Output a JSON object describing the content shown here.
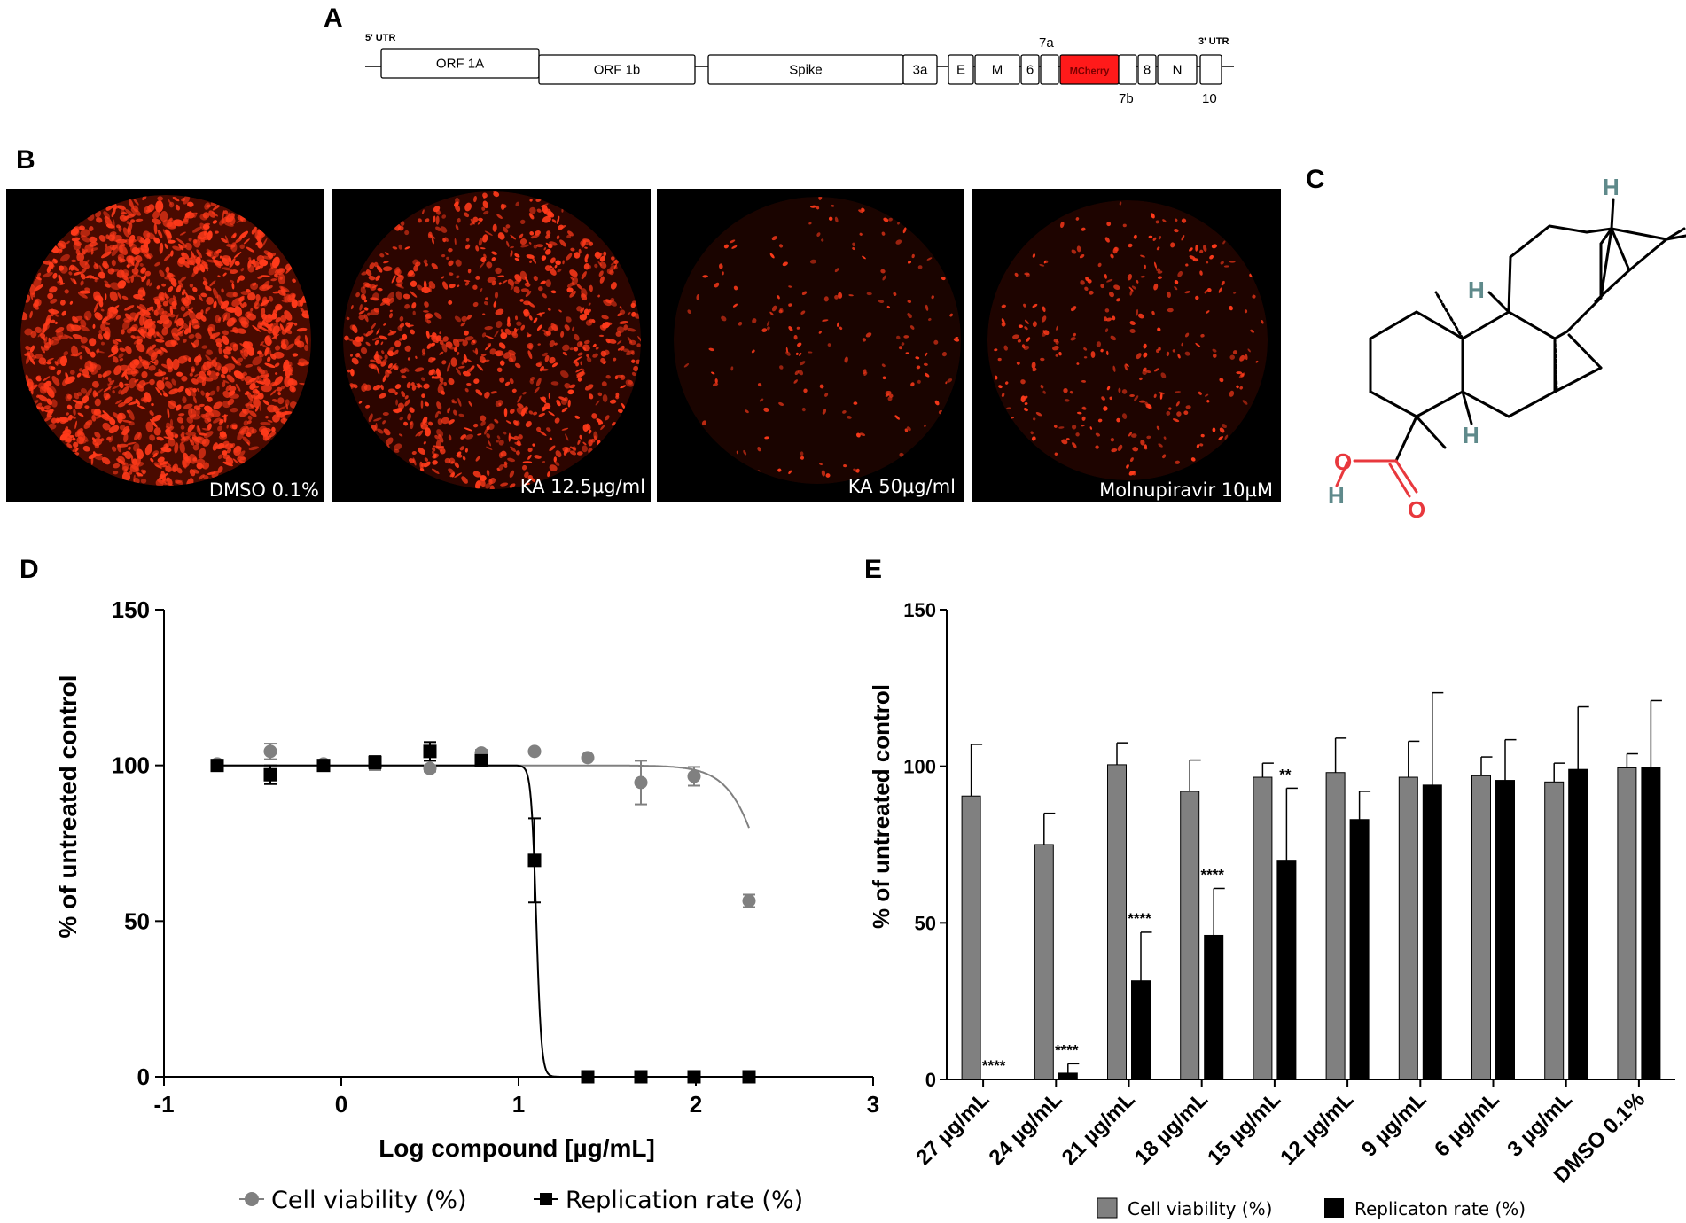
{
  "panels": {
    "a": "A",
    "b": "B",
    "c": "C",
    "d": "D",
    "e": "E"
  },
  "genome": {
    "utr5": "5' UTR",
    "utr3": "3' UTR",
    "segments": [
      {
        "label": "ORF 1A"
      },
      {
        "label": "ORF 1b"
      },
      {
        "label": "Spike"
      },
      {
        "label": "3a"
      },
      {
        "label": "E"
      },
      {
        "label": "M"
      },
      {
        "label": "6"
      },
      {
        "label": ""
      },
      {
        "label": "MCherry",
        "color": "#ff1a1a"
      },
      {
        "label": ""
      },
      {
        "label": "8"
      },
      {
        "label": "N"
      },
      {
        "label": ""
      }
    ],
    "above_labels": [
      "7a"
    ],
    "below_labels": [
      "7b",
      "10"
    ]
  },
  "micrographs": [
    {
      "label": "DMSO 0.1%",
      "density": 0.95
    },
    {
      "label": "KA 12.5µg/ml",
      "density": 0.6
    },
    {
      "label": "KA 50µg/ml",
      "density": 0.12
    },
    {
      "label": "Molnupiravir 10µM",
      "density": 0.2
    }
  ],
  "structure_atoms": {
    "h": "H",
    "o": "O"
  },
  "colors": {
    "mcherry": "#ff1a1a",
    "fluor": "#ff3a1a",
    "gray_series": "#808080",
    "black_series": "#000000",
    "heteroatom": "#e8383d",
    "hydrogen": "#5f8a8b"
  },
  "chart_data": [
    {
      "type": "scatter",
      "panel": "D",
      "xlabel": "Log compound [µg/mL]",
      "ylabel": "% of untreated control",
      "xlim": [
        -1,
        3
      ],
      "ylim": [
        0,
        150
      ],
      "xticks": [
        -1,
        0,
        1,
        2,
        3
      ],
      "yticks": [
        0,
        50,
        100,
        150
      ],
      "series": [
        {
          "name": "Cell viability (%)",
          "marker": "circle",
          "color": "#808080",
          "x": [
            -0.7,
            -0.4,
            -0.1,
            0.19,
            0.5,
            0.79,
            1.09,
            1.39,
            1.69,
            1.99,
            2.3
          ],
          "y": [
            100.5,
            104.5,
            100.5,
            100.5,
            99,
            104,
            104.5,
            102.5,
            94.5,
            96.5,
            56.5
          ],
          "err": [
            1,
            2.5,
            1,
            2,
            1,
            1,
            0,
            0,
            7,
            3,
            2
          ],
          "fit": {
            "top": 100,
            "bottom": 0,
            "logIC50": 2.45,
            "hill": 4
          }
        },
        {
          "name": "Replication rate (%)",
          "marker": "square",
          "color": "#000000",
          "x": [
            -0.7,
            -0.4,
            -0.1,
            0.19,
            0.5,
            0.79,
            1.09,
            1.39,
            1.69,
            1.99,
            2.3
          ],
          "y": [
            100,
            97,
            100,
            101,
            104.5,
            101.5,
            69.5,
            0,
            0,
            0,
            0
          ],
          "err": [
            0,
            3,
            0.5,
            2,
            3,
            1,
            13.5,
            0,
            0,
            0,
            0
          ],
          "fit": {
            "top": 100,
            "bottom": 0,
            "logIC50": 1.1,
            "hill": 30
          }
        }
      ]
    },
    {
      "type": "bar",
      "panel": "E",
      "ylabel": "% of untreated control",
      "ylim": [
        0,
        150
      ],
      "yticks": [
        0,
        50,
        100,
        150
      ],
      "categories": [
        "27 µg/mL",
        "24 µg/mL",
        "21 µg/mL",
        "18 µg/mL",
        "15 µg/mL",
        "12 µg/mL",
        "9 µg/mL",
        "6 µg/mL",
        "3 µg/mL",
        "DMSO 0.1%"
      ],
      "series": [
        {
          "name": "Cell viability (%)",
          "color": "#808080",
          "values": [
            90.5,
            75,
            100.5,
            92,
            96.5,
            98,
            96.5,
            97,
            95,
            99.5
          ],
          "err": [
            16.5,
            10,
            7,
            10,
            4.5,
            11,
            11.5,
            6,
            6,
            4.5
          ]
        },
        {
          "name": "Replicaton rate (%)",
          "color": "#000000",
          "values": [
            0,
            2,
            31.5,
            46,
            70,
            83,
            94,
            95.5,
            99,
            99.5
          ],
          "err": [
            0,
            3,
            15.5,
            15,
            23,
            9,
            29.5,
            13,
            20,
            21.5
          ]
        }
      ],
      "annotations": [
        {
          "category": 0,
          "text": "****"
        },
        {
          "category": 1,
          "text": "****"
        },
        {
          "category": 2,
          "text": "****"
        },
        {
          "category": 3,
          "text": "****"
        },
        {
          "category": 4,
          "text": "**"
        }
      ]
    }
  ]
}
